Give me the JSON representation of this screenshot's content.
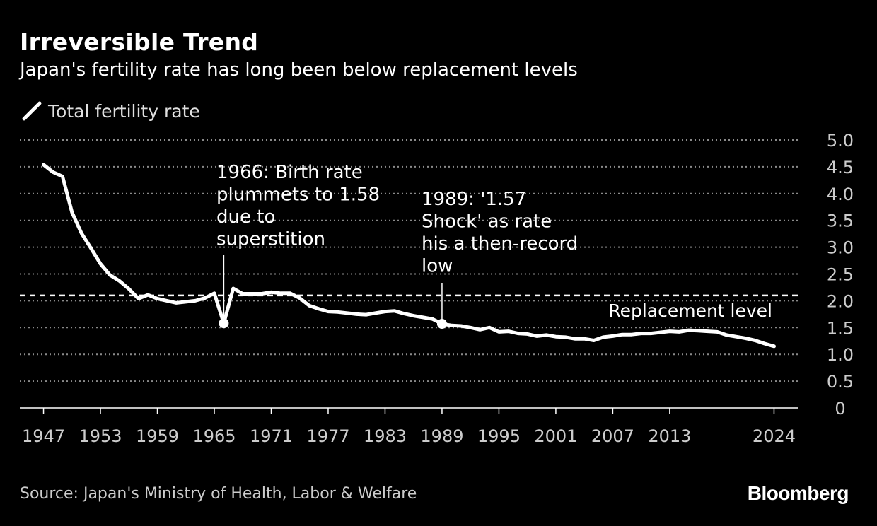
{
  "header": {
    "title": "Irreversible Trend",
    "subtitle": "Japan's fertility rate has long been below replacement levels"
  },
  "legend": {
    "label": "Total fertility rate",
    "icon": "line-swatch-icon"
  },
  "footer": {
    "source": "Source: Japan's Ministry of Health, Labor & Welfare",
    "brand": "Bloomberg"
  },
  "colors": {
    "background": "#000000",
    "line": "#ffffff",
    "grid": "#8a8a8a",
    "text": "#ffffff",
    "muted": "#cccccc"
  },
  "chart_data": {
    "type": "line",
    "title": "Irreversible Trend",
    "subtitle": "Japan's fertility rate has long been below replacement levels",
    "xlabel": "",
    "ylabel": "",
    "xlim": [
      1944.5,
      2026.5
    ],
    "ylim": [
      0,
      5
    ],
    "y_ticks": [
      0,
      0.5,
      1.0,
      1.5,
      2.0,
      2.5,
      3.0,
      3.5,
      4.0,
      4.5,
      5.0
    ],
    "y_tick_labels": [
      "0",
      "0.5",
      "1.0",
      "1.5",
      "2.0",
      "2.5",
      "3.0",
      "3.5",
      "4.0",
      "4.5",
      "5.0"
    ],
    "x_ticks": [
      1947,
      1953,
      1959,
      1965,
      1971,
      1977,
      1983,
      1989,
      1995,
      2001,
      2007,
      2013,
      2024
    ],
    "x_tick_labels": [
      "1947",
      "1953",
      "1959",
      "1965",
      "1971",
      "1977",
      "1983",
      "1989",
      "1995",
      "2001",
      "2007",
      "2013",
      "2024"
    ],
    "grid": true,
    "legend_position": "top-left",
    "series": [
      {
        "name": "Total fertility rate",
        "x": [
          1947,
          1948,
          1949,
          1950,
          1951,
          1952,
          1953,
          1954,
          1955,
          1956,
          1957,
          1958,
          1959,
          1960,
          1961,
          1962,
          1963,
          1964,
          1965,
          1966,
          1967,
          1968,
          1969,
          1970,
          1971,
          1972,
          1973,
          1974,
          1975,
          1976,
          1977,
          1978,
          1979,
          1980,
          1981,
          1982,
          1983,
          1984,
          1985,
          1986,
          1987,
          1988,
          1989,
          1990,
          1991,
          1992,
          1993,
          1994,
          1995,
          1996,
          1997,
          1998,
          1999,
          2000,
          2001,
          2002,
          2003,
          2004,
          2005,
          2006,
          2007,
          2008,
          2009,
          2010,
          2011,
          2012,
          2013,
          2014,
          2015,
          2016,
          2017,
          2018,
          2019,
          2020,
          2021,
          2022,
          2023,
          2024
        ],
        "values": [
          4.54,
          4.4,
          4.32,
          3.65,
          3.26,
          2.98,
          2.69,
          2.48,
          2.37,
          2.22,
          2.04,
          2.11,
          2.04,
          2.0,
          1.96,
          1.98,
          2.0,
          2.05,
          2.14,
          1.58,
          2.23,
          2.13,
          2.13,
          2.13,
          2.16,
          2.14,
          2.14,
          2.05,
          1.91,
          1.85,
          1.8,
          1.79,
          1.77,
          1.75,
          1.74,
          1.77,
          1.8,
          1.81,
          1.76,
          1.72,
          1.69,
          1.66,
          1.57,
          1.54,
          1.53,
          1.5,
          1.46,
          1.5,
          1.42,
          1.43,
          1.39,
          1.38,
          1.34,
          1.36,
          1.33,
          1.32,
          1.29,
          1.29,
          1.26,
          1.32,
          1.34,
          1.37,
          1.37,
          1.39,
          1.39,
          1.41,
          1.43,
          1.42,
          1.45,
          1.44,
          1.43,
          1.42,
          1.36,
          1.33,
          1.3,
          1.26,
          1.2,
          1.15
        ]
      }
    ],
    "reference_lines": [
      {
        "name": "Replacement level",
        "value": 2.1,
        "label": "Replacement level"
      }
    ],
    "annotations": [
      {
        "name": "annotation-1966",
        "x": 1966,
        "y": 1.58,
        "lines": [
          "1966: Birth rate",
          "plummets to 1.58",
          "due to",
          "superstition"
        ]
      },
      {
        "name": "annotation-1989",
        "x": 1989,
        "y": 1.57,
        "lines": [
          "1989: '1.57",
          "Shock' as rate",
          "his a then-record",
          "low"
        ]
      }
    ]
  }
}
